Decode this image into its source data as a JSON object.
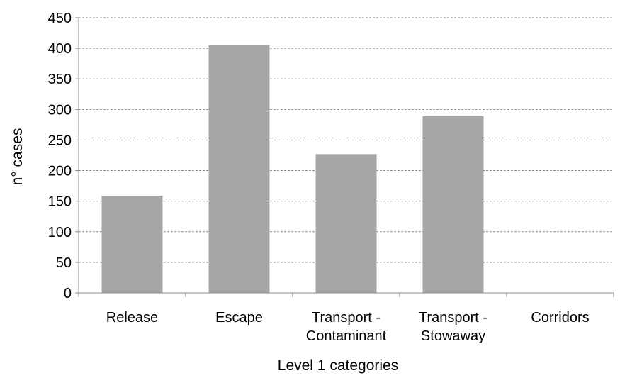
{
  "chart_data": {
    "type": "bar",
    "title": "",
    "xlabel": "Level 1 categories",
    "ylabel": "n° cases",
    "categories": [
      [
        "Release"
      ],
      [
        "Escape"
      ],
      [
        "Transport -",
        "Contaminant"
      ],
      [
        "Transport -",
        "Stowaway"
      ],
      [
        "Corridors"
      ]
    ],
    "values": [
      159,
      405,
      227,
      289,
      0
    ],
    "ylim": [
      0,
      450
    ],
    "yticks": [
      0,
      50,
      100,
      150,
      200,
      250,
      300,
      350,
      400,
      450
    ],
    "grid": true,
    "legend": "none",
    "bar_color": "#a6a6a6",
    "grid_color": "#8c8c8c",
    "axis_color": "#8c8c8c"
  }
}
